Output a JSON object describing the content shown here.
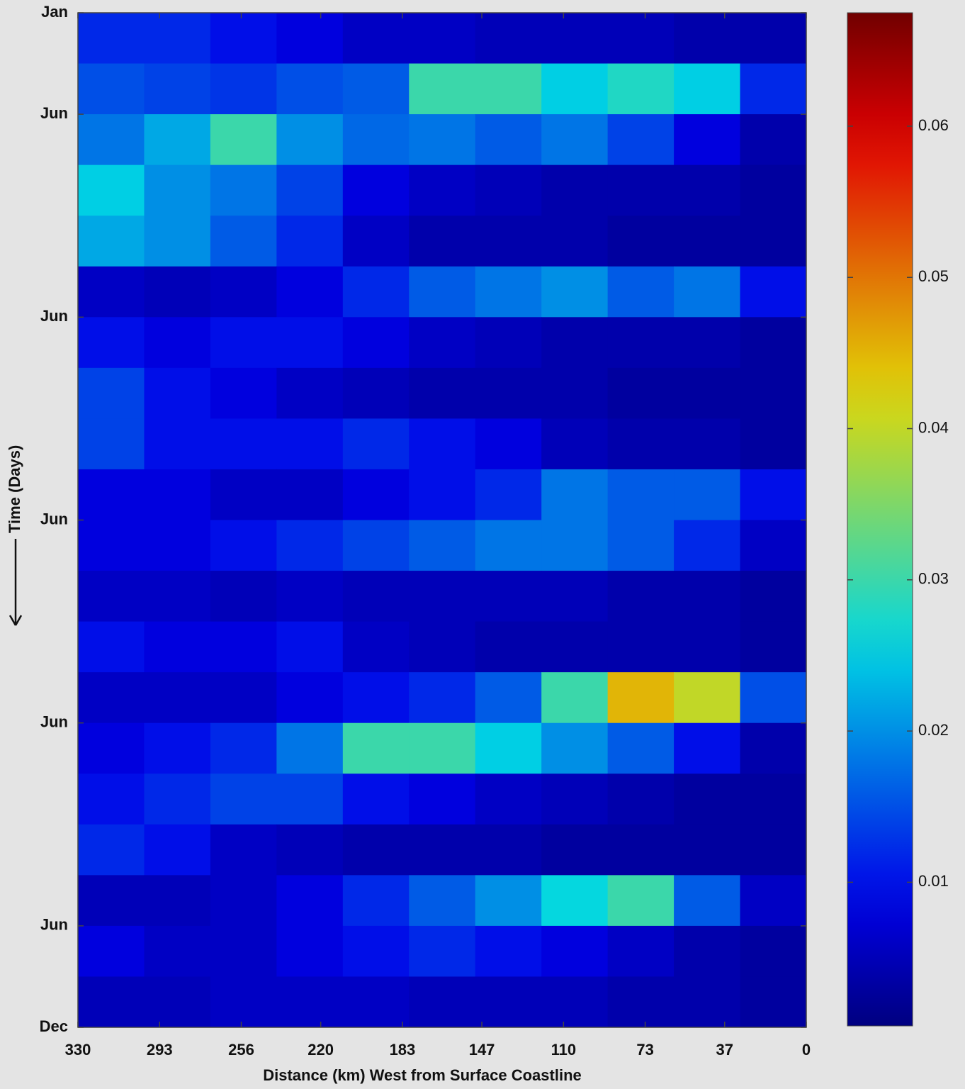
{
  "chart_data": {
    "type": "heatmap",
    "xlabel": "Distance (km) West from Surface Coastline",
    "ylabel": "Time (Days)",
    "xlim": [
      330,
      0
    ],
    "xticks": [
      330,
      293,
      256,
      220,
      183,
      147,
      110,
      73,
      37,
      0
    ],
    "ylim": [
      0,
      5
    ],
    "yticks": [
      {
        "value": 0,
        "label": "Jan"
      },
      {
        "value": 0.5,
        "label": "Jun"
      },
      {
        "value": 1.5,
        "label": "Jun"
      },
      {
        "value": 2.5,
        "label": "Jun"
      },
      {
        "value": 3.5,
        "label": "Jun"
      },
      {
        "value": 4.5,
        "label": "Jun"
      },
      {
        "value": 5,
        "label": "Dec"
      }
    ],
    "x_bins": [
      330,
      300,
      270,
      240,
      210,
      180,
      150,
      120,
      90,
      60,
      30,
      0
    ],
    "y_bins": [
      0,
      0.25,
      0.5,
      0.75,
      1,
      1.25,
      1.5,
      1.75,
      2,
      2.25,
      2.5,
      2.75,
      3,
      3.25,
      3.5,
      3.75,
      4,
      4.25,
      4.5,
      4.75,
      5
    ],
    "z": [
      [
        0.012,
        0.012,
        0.01,
        0.008,
        0.006,
        0.006,
        0.005,
        0.005,
        0.005,
        0.004,
        0.004
      ],
      [
        0.015,
        0.014,
        0.013,
        0.015,
        0.016,
        0.03,
        0.03,
        0.025,
        0.028,
        0.025,
        0.012
      ],
      [
        0.018,
        0.022,
        0.03,
        0.02,
        0.017,
        0.018,
        0.016,
        0.018,
        0.014,
        0.008,
        0.004
      ],
      [
        0.025,
        0.02,
        0.018,
        0.014,
        0.008,
        0.006,
        0.005,
        0.004,
        0.004,
        0.004,
        0.003
      ],
      [
        0.022,
        0.02,
        0.016,
        0.012,
        0.006,
        0.004,
        0.004,
        0.004,
        0.003,
        0.003,
        0.003
      ],
      [
        0.006,
        0.005,
        0.006,
        0.008,
        0.012,
        0.016,
        0.018,
        0.02,
        0.016,
        0.018,
        0.01
      ],
      [
        0.01,
        0.008,
        0.01,
        0.01,
        0.008,
        0.006,
        0.005,
        0.004,
        0.004,
        0.004,
        0.003
      ],
      [
        0.014,
        0.01,
        0.008,
        0.006,
        0.005,
        0.004,
        0.004,
        0.004,
        0.003,
        0.003,
        0.003
      ],
      [
        0.014,
        0.01,
        0.01,
        0.01,
        0.012,
        0.01,
        0.008,
        0.005,
        0.004,
        0.004,
        0.003
      ],
      [
        0.008,
        0.008,
        0.006,
        0.006,
        0.008,
        0.01,
        0.012,
        0.018,
        0.016,
        0.016,
        0.01
      ],
      [
        0.008,
        0.008,
        0.01,
        0.012,
        0.014,
        0.016,
        0.018,
        0.018,
        0.016,
        0.012,
        0.006
      ],
      [
        0.006,
        0.006,
        0.005,
        0.006,
        0.005,
        0.005,
        0.005,
        0.005,
        0.004,
        0.004,
        0.003
      ],
      [
        0.01,
        0.008,
        0.008,
        0.01,
        0.006,
        0.005,
        0.004,
        0.004,
        0.004,
        0.004,
        0.003
      ],
      [
        0.006,
        0.006,
        0.006,
        0.008,
        0.01,
        0.012,
        0.016,
        0.03,
        0.045,
        0.04,
        0.015
      ],
      [
        0.008,
        0.01,
        0.012,
        0.018,
        0.03,
        0.03,
        0.025,
        0.02,
        0.016,
        0.01,
        0.004
      ],
      [
        0.01,
        0.012,
        0.014,
        0.014,
        0.01,
        0.008,
        0.006,
        0.005,
        0.004,
        0.003,
        0.003
      ],
      [
        0.012,
        0.01,
        0.006,
        0.005,
        0.004,
        0.004,
        0.004,
        0.003,
        0.003,
        0.003,
        0.003
      ],
      [
        0.005,
        0.005,
        0.006,
        0.008,
        0.012,
        0.016,
        0.02,
        0.026,
        0.03,
        0.016,
        0.006
      ],
      [
        0.008,
        0.006,
        0.006,
        0.008,
        0.01,
        0.012,
        0.01,
        0.008,
        0.006,
        0.004,
        0.003
      ],
      [
        0.005,
        0.005,
        0.006,
        0.006,
        0.006,
        0.005,
        0.005,
        0.005,
        0.004,
        0.004,
        0.003
      ]
    ],
    "colormap": "jet",
    "clim": [
      0.0005,
      0.0675
    ],
    "colorbar_ticks": [
      0.01,
      0.02,
      0.03,
      0.04,
      0.05,
      0.06
    ]
  }
}
